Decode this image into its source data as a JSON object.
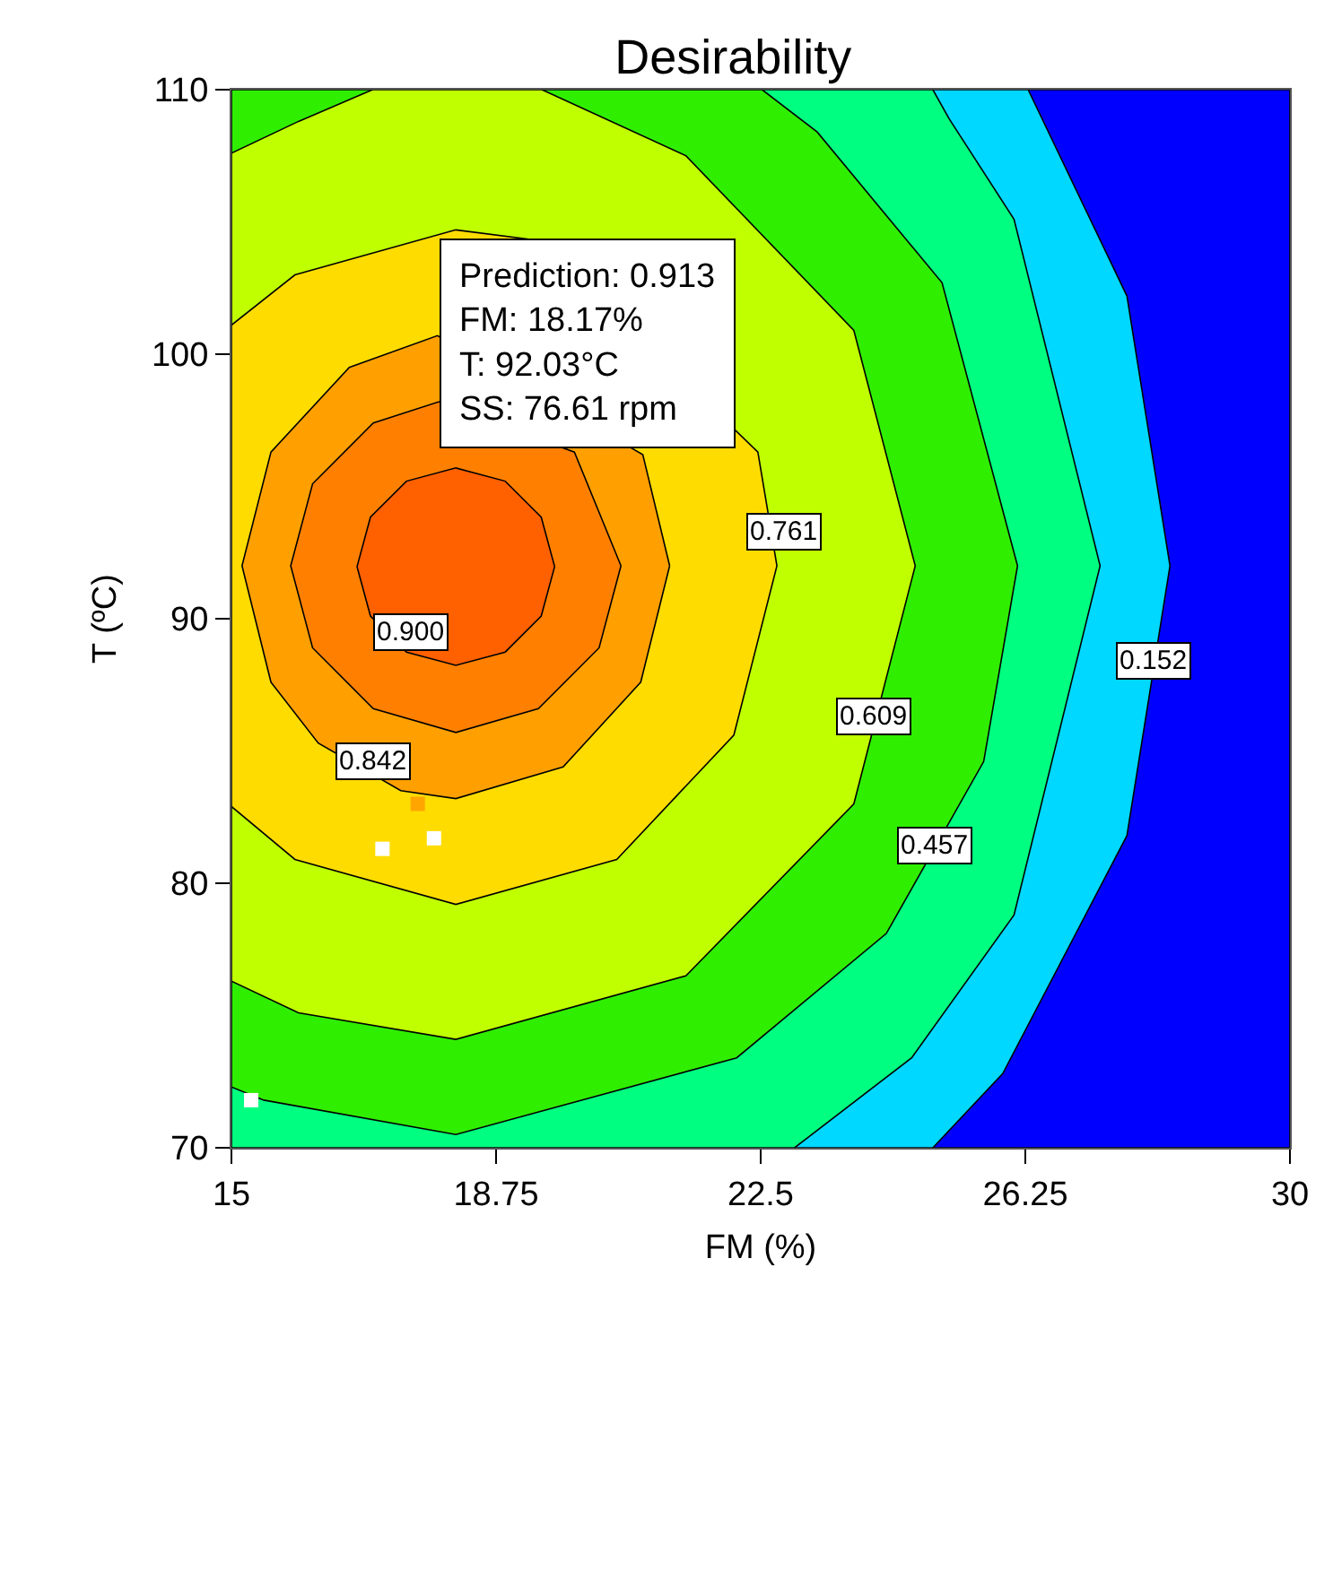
{
  "chart_data": {
    "type": "area",
    "title": "Desirability",
    "xlabel": "FM (%)",
    "ylabel": "T (ºC)",
    "xlim": [
      15,
      30
    ],
    "xticks": [
      15,
      18.75,
      22.5,
      26.25,
      30
    ],
    "ylim": [
      70,
      110
    ],
    "yticks": [
      70,
      80,
      90,
      100,
      110
    ],
    "series": [
      {
        "color": "#0000ff",
        "x": [
          15,
          30,
          30,
          15,
          15
        ],
        "values": [
          70,
          70,
          110,
          110,
          70
        ]
      },
      {
        "color": "#00d8ff",
        "x": [
          24.94,
          25.93,
          27.69,
          28.3,
          27.69,
          26.29,
          15,
          15,
          24.94
        ],
        "values": [
          70,
          72.8,
          81.8,
          92.0,
          102.2,
          110,
          110,
          70,
          70
        ]
      },
      {
        "color": "#00ff80",
        "x": [
          22.98,
          24.64,
          26.09,
          27.31,
          26.09,
          25.17,
          24.94,
          15,
          15,
          22.98
        ],
        "values": [
          70,
          73.4,
          78.8,
          92.0,
          105.1,
          108.9,
          110,
          110,
          70,
          70
        ]
      },
      {
        "color": "#30ee00",
        "x": [
          15,
          15.46,
          18.18,
          22.16,
          24.28,
          25.66,
          26.14,
          25.07,
          23.3,
          22.52,
          15,
          15
        ],
        "values": [
          72.3,
          71.8,
          70.5,
          73.4,
          78.1,
          84.6,
          92.0,
          102.7,
          108.4,
          110,
          110,
          72.3
        ]
      },
      {
        "color": "#c0ff00",
        "x": [
          15,
          15.95,
          18.18,
          21.44,
          23.82,
          24.69,
          23.82,
          21.44,
          19.4,
          17.0,
          15.95,
          15,
          15
        ],
        "values": [
          76.3,
          75.1,
          74.1,
          76.5,
          83.0,
          92.0,
          100.9,
          107.5,
          110,
          110,
          108.8,
          107.6,
          76.3
        ]
      },
      {
        "color": "#ffdc00",
        "x": [
          15,
          15.9,
          18.18,
          20.46,
          22.12,
          22.73,
          22.46,
          19.36,
          18.18,
          15.9,
          15,
          15
        ],
        "values": [
          82.9,
          80.9,
          79.2,
          80.9,
          85.6,
          92.0,
          96.3,
          104.3,
          104.7,
          103.0,
          101.1,
          82.9
        ]
      },
      {
        "color": "#ffa000",
        "x": [
          21.21,
          20.83,
          17.92,
          16.67,
          15.56,
          15.15,
          15.56,
          16.23,
          17.4,
          18.18,
          19.7,
          20.8,
          21.21
        ],
        "values": [
          92.0,
          96.2,
          100.7,
          99.5,
          96.3,
          92.0,
          87.6,
          85.3,
          83.5,
          83.2,
          84.4,
          87.6,
          92.0
        ]
      },
      {
        "color": "#ff8000",
        "x": [
          20.52,
          19.86,
          17.94,
          17.01,
          16.15,
          15.84,
          16.15,
          17.01,
          18.18,
          19.35,
          20.21,
          20.52
        ],
        "values": [
          92.0,
          96.3,
          98.2,
          97.4,
          95.1,
          92.0,
          88.9,
          86.6,
          85.7,
          86.6,
          88.9,
          92.0
        ]
      },
      {
        "color": "#ff6000",
        "x": [
          19.58,
          19.39,
          18.88,
          18.18,
          17.48,
          16.97,
          16.78,
          16.97,
          17.48,
          18.18,
          18.88,
          19.39,
          19.58
        ],
        "values": [
          91.97,
          93.84,
          95.2,
          95.7,
          95.2,
          93.84,
          91.97,
          90.1,
          88.74,
          88.24,
          88.74,
          90.1,
          91.97
        ]
      },
      {
        "type": "scatter",
        "marker": "square",
        "colors": [
          "#ffffff",
          "#ffffff",
          "#ffffff",
          "#ffa500"
        ],
        "x": [
          17.14,
          17.87,
          15.28,
          17.64
        ],
        "values": [
          81.3,
          81.7,
          71.8,
          83.0
        ]
      }
    ],
    "annotations": [
      {
        "text": "0.900",
        "x": 17.54,
        "y": 89.5
      },
      {
        "text": "0.842",
        "x": 17.01,
        "y": 84.6
      },
      {
        "text": "0.761",
        "x": 22.83,
        "y": 93.3
      },
      {
        "text": "0.609",
        "x": 24.1,
        "y": 86.3
      },
      {
        "text": "0.457",
        "x": 24.97,
        "y": 81.4
      },
      {
        "text": "0.152",
        "x": 28.07,
        "y": 88.4
      },
      "Prediction: 0.913\nFM: 18.17%\nT: 92.03°C\nSS: 76.61 rpm"
    ]
  }
}
